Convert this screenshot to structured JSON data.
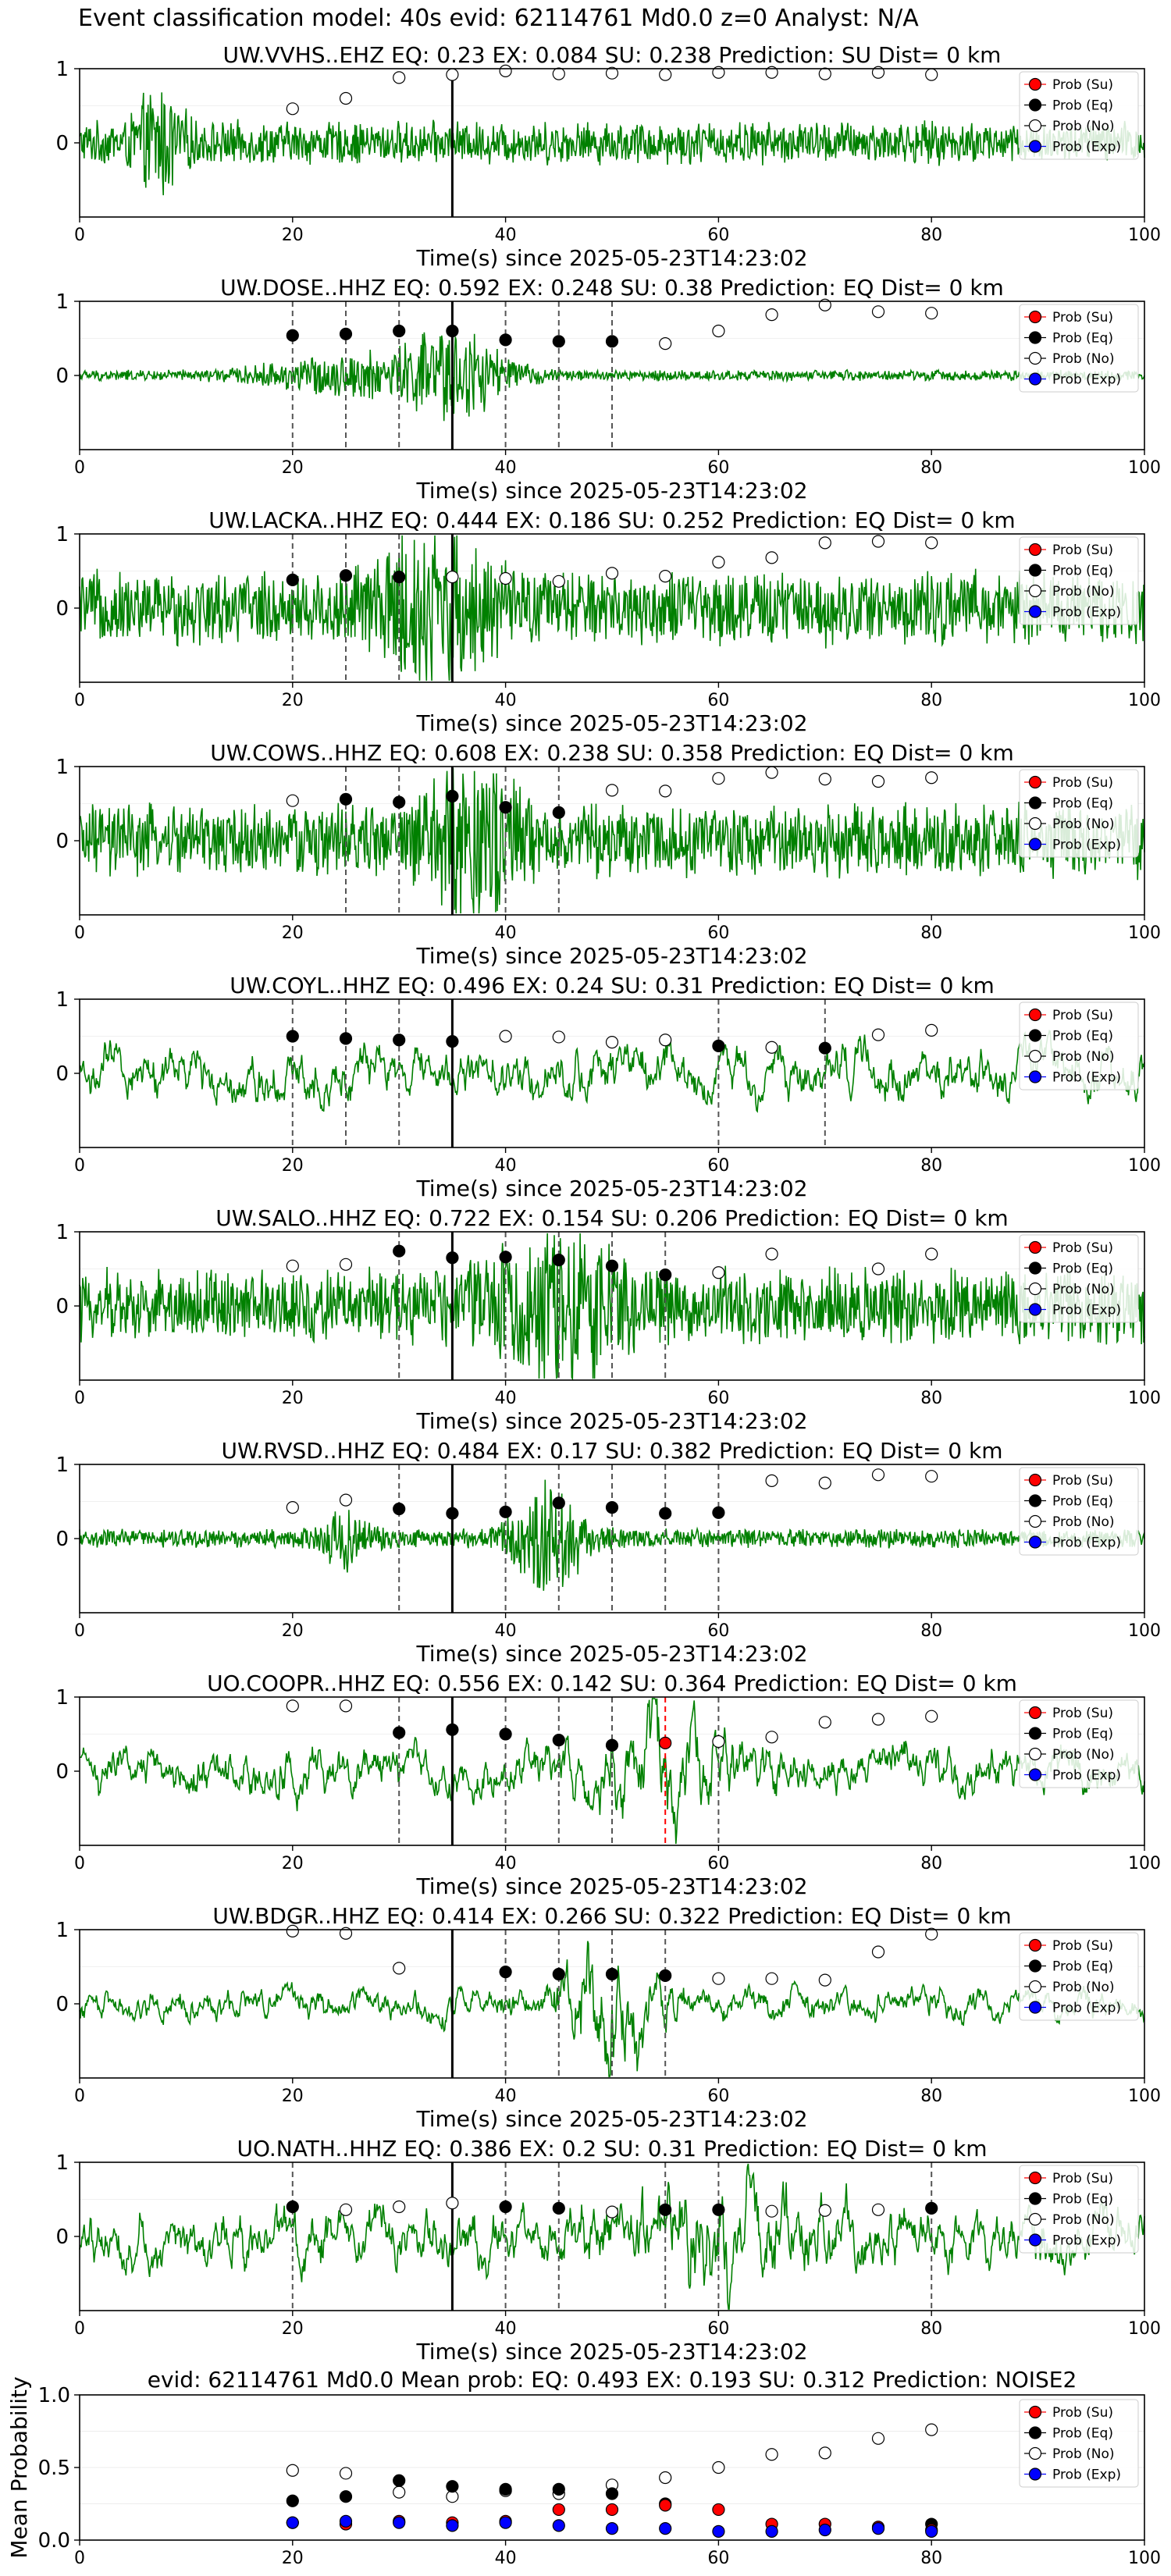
{
  "figure": {
    "suptitle": "Event classification model: 40s evid: 62114761 Md0.0 z=0 Analyst: N/A",
    "xlabel": "Time(s) since 2025-05-23T14:23:02",
    "xticks": [
      0,
      20,
      40,
      60,
      80,
      100
    ],
    "legend": [
      "Prob (Su)",
      "Prob (Eq)",
      "Prob (No)",
      "Prob (Exp)"
    ],
    "colors": {
      "waveform": "#008000",
      "su": "#ff0000",
      "eq": "#000000",
      "no": "#ffffff",
      "exp": "#0000ff",
      "pick": "#555555",
      "origin": "#000000"
    }
  },
  "chart_data": [
    {
      "type": "line",
      "title": "UW.VVHS..EHZ   EQ: 0.23  EX: 0.084  SU: 0.238   Prediction: SU    Dist= 0 km",
      "xlim": [
        0,
        100
      ],
      "ylim_ticks": [
        0,
        1
      ],
      "waveform": {
        "amp": 0.32,
        "style": "hf",
        "bursts": [
          [
            7.5,
            0.6,
            2.2
          ]
        ]
      },
      "origin_line": 35,
      "picks": [],
      "picks_red": [],
      "probs": {
        "x": [
          20,
          25,
          30,
          35,
          40,
          45,
          50,
          55,
          60,
          65,
          70,
          75,
          80
        ],
        "no": [
          0.46,
          0.6,
          0.88,
          0.92,
          0.97,
          0.93,
          0.94,
          0.92,
          0.95,
          0.95,
          0.93,
          0.95,
          0.92
        ]
      }
    },
    {
      "type": "line",
      "title": "UW.DOSE..HHZ   EQ: 0.592  EX: 0.248  SU: 0.38   Prediction: EQ    Dist= 0 km",
      "xlim": [
        0,
        100
      ],
      "ylim_ticks": [
        0,
        1
      ],
      "waveform": {
        "amp": 0.08,
        "style": "hf",
        "bursts": [
          [
            25,
            0.25,
            8
          ],
          [
            35,
            0.65,
            5
          ]
        ]
      },
      "origin_line": 35,
      "picks": [
        20,
        25,
        30,
        35,
        40,
        45,
        50
      ],
      "picks_red": [],
      "probs": {
        "x": [
          20,
          25,
          30,
          35,
          40,
          45,
          50,
          55,
          60,
          65,
          70,
          75,
          80
        ],
        "eq": [
          0.54,
          0.56,
          0.6,
          0.6,
          0.48,
          0.46,
          0.46,
          null,
          null,
          null,
          null,
          null,
          null
        ],
        "no": [
          null,
          null,
          null,
          null,
          null,
          null,
          null,
          0.43,
          0.6,
          0.82,
          0.95,
          0.86,
          0.84
        ]
      }
    },
    {
      "type": "line",
      "title": "UW.LACKA..HHZ   EQ: 0.444  EX: 0.186  SU: 0.252   Prediction: EQ    Dist= 0 km",
      "xlim": [
        0,
        100
      ],
      "ylim_ticks": [
        0,
        1
      ],
      "waveform": {
        "amp": 0.55,
        "style": "hf",
        "bursts": [
          [
            33,
            0.9,
            5
          ]
        ]
      },
      "origin_line": 35,
      "picks": [
        20,
        25,
        30,
        35
      ],
      "picks_red": [],
      "probs": {
        "x": [
          20,
          25,
          30,
          35,
          40,
          45,
          50,
          55,
          60,
          65,
          70,
          75,
          80
        ],
        "eq": [
          0.38,
          0.44,
          0.42,
          null,
          null,
          null,
          null,
          null,
          null,
          null,
          null,
          null,
          null
        ],
        "no": [
          null,
          null,
          null,
          0.42,
          0.4,
          0.36,
          0.47,
          0.43,
          0.62,
          0.68,
          0.88,
          0.9,
          0.88
        ]
      }
    },
    {
      "type": "line",
      "title": "UW.COWS..HHZ   EQ: 0.608  EX: 0.238  SU: 0.358   Prediction: EQ    Dist= 0 km",
      "xlim": [
        0,
        100
      ],
      "ylim_ticks": [
        0,
        1
      ],
      "waveform": {
        "amp": 0.55,
        "style": "hf",
        "bursts": [
          [
            37,
            0.9,
            4
          ]
        ]
      },
      "origin_line": 35,
      "picks": [
        25,
        30,
        35,
        40,
        45
      ],
      "picks_red": [],
      "probs": {
        "x": [
          20,
          25,
          30,
          35,
          40,
          45,
          50,
          55,
          60,
          65,
          70,
          75,
          80
        ],
        "eq": [
          null,
          0.56,
          0.52,
          0.6,
          0.45,
          0.38,
          null,
          null,
          null,
          null,
          null,
          null,
          null
        ],
        "no": [
          0.54,
          null,
          null,
          null,
          null,
          null,
          0.68,
          0.67,
          0.84,
          0.92,
          0.83,
          0.8,
          0.85
        ]
      }
    },
    {
      "type": "line",
      "title": "UW.COYL..HHZ   EQ: 0.496  EX: 0.24  SU: 0.31   Prediction: EQ    Dist= 0 km",
      "xlim": [
        0,
        100
      ],
      "ylim_ticks": [
        0,
        1
      ],
      "waveform": {
        "amp": 0.5,
        "style": "lf",
        "bursts": []
      },
      "origin_line": 35,
      "picks": [
        20,
        25,
        30,
        35,
        60,
        70
      ],
      "picks_red": [],
      "probs": {
        "x": [
          20,
          25,
          30,
          35,
          40,
          45,
          50,
          55,
          60,
          65,
          70,
          75,
          80
        ],
        "eq": [
          0.5,
          0.47,
          0.45,
          0.43,
          null,
          null,
          null,
          null,
          0.37,
          null,
          0.34,
          null,
          null
        ],
        "no": [
          null,
          null,
          null,
          null,
          0.5,
          0.49,
          0.42,
          0.45,
          null,
          0.35,
          null,
          0.52,
          0.58
        ]
      }
    },
    {
      "type": "line",
      "title": "UW.SALO..HHZ   EQ: 0.722  EX: 0.154  SU: 0.206   Prediction: EQ    Dist= 0 km",
      "xlim": [
        0,
        100
      ],
      "ylim_ticks": [
        0,
        1
      ],
      "waveform": {
        "amp": 0.55,
        "style": "hf",
        "bursts": [
          [
            45,
            0.8,
            6
          ]
        ]
      },
      "origin_line": 35,
      "picks": [
        30,
        35,
        40,
        45,
        50,
        55
      ],
      "picks_red": [],
      "probs": {
        "x": [
          20,
          25,
          30,
          35,
          40,
          45,
          50,
          55,
          60,
          65,
          70,
          75,
          80
        ],
        "eq": [
          null,
          null,
          0.74,
          0.65,
          0.66,
          0.62,
          0.54,
          0.42,
          null,
          null,
          null,
          null,
          null
        ],
        "no": [
          0.54,
          0.56,
          null,
          null,
          null,
          null,
          null,
          null,
          0.45,
          0.7,
          null,
          0.5,
          0.7
        ]
      }
    },
    {
      "type": "line",
      "title": "UW.RVSD..HHZ   EQ: 0.484  EX: 0.17  SU: 0.382   Prediction: EQ    Dist= 0 km",
      "xlim": [
        0,
        100
      ],
      "ylim_ticks": [
        0,
        1
      ],
      "waveform": {
        "amp": 0.14,
        "style": "hf",
        "bursts": [
          [
            25,
            0.4,
            2
          ],
          [
            44,
            0.9,
            3
          ]
        ]
      },
      "origin_line": 35,
      "picks": [
        30,
        35,
        40,
        45,
        50,
        55,
        60
      ],
      "picks_red": [],
      "probs": {
        "x": [
          20,
          25,
          30,
          35,
          40,
          45,
          50,
          55,
          60,
          65,
          70,
          75,
          80
        ],
        "eq": [
          null,
          null,
          0.4,
          0.34,
          0.36,
          0.48,
          0.42,
          0.34,
          0.35,
          null,
          null,
          null,
          null
        ],
        "no": [
          0.42,
          0.52,
          null,
          null,
          null,
          null,
          null,
          null,
          null,
          0.78,
          0.75,
          0.86,
          0.84
        ]
      }
    },
    {
      "type": "line",
      "title": "UO.COOPR..HHZ   EQ: 0.556  EX: 0.142  SU: 0.364   Prediction: EQ    Dist= 0 km",
      "xlim": [
        0,
        100
      ],
      "ylim_ticks": [
        0,
        1
      ],
      "waveform": {
        "amp": 0.45,
        "style": "lf",
        "bursts": [
          [
            55,
            0.7,
            6
          ]
        ]
      },
      "origin_line": 35,
      "picks": [
        30,
        35,
        40,
        45,
        50,
        60
      ],
      "picks_red": [
        55
      ],
      "probs": {
        "x": [
          20,
          25,
          30,
          35,
          40,
          45,
          50,
          55,
          60,
          65,
          70,
          75,
          80
        ],
        "su": [
          null,
          null,
          null,
          null,
          null,
          null,
          null,
          0.38,
          null,
          null,
          null,
          null,
          null
        ],
        "eq": [
          null,
          null,
          0.52,
          0.56,
          0.5,
          0.42,
          0.35,
          null,
          null,
          null,
          null,
          null,
          null
        ],
        "no": [
          0.88,
          0.88,
          null,
          null,
          null,
          null,
          null,
          null,
          0.4,
          0.46,
          0.66,
          0.7,
          0.74
        ]
      }
    },
    {
      "type": "line",
      "title": "UW.BDGR..HHZ   EQ: 0.414  EX: 0.266  SU: 0.322   Prediction: EQ    Dist= 0 km",
      "xlim": [
        0,
        100
      ],
      "ylim_ticks": [
        0,
        1
      ],
      "waveform": {
        "amp": 0.3,
        "style": "lf",
        "bursts": [
          [
            50,
            1.0,
            4
          ]
        ]
      },
      "origin_line": 35,
      "picks": [
        40,
        45,
        50,
        55
      ],
      "picks_red": [],
      "probs": {
        "x": [
          20,
          25,
          30,
          35,
          40,
          45,
          50,
          55,
          60,
          65,
          70,
          75,
          80
        ],
        "eq": [
          null,
          null,
          null,
          null,
          0.43,
          0.4,
          0.4,
          0.38,
          null,
          null,
          null,
          null,
          null
        ],
        "no": [
          0.98,
          0.95,
          0.48,
          null,
          null,
          null,
          null,
          null,
          0.34,
          0.34,
          0.32,
          0.7,
          0.94
        ]
      }
    },
    {
      "type": "line",
      "title": "UO.NATH..HHZ   EQ: 0.386  EX: 0.2  SU: 0.31   Prediction: EQ    Dist= 0 km",
      "xlim": [
        0,
        100
      ],
      "ylim_ticks": [
        0,
        1
      ],
      "waveform": {
        "amp": 0.55,
        "style": "lf",
        "bursts": [
          [
            60,
            0.7,
            8
          ]
        ]
      },
      "origin_line": 35,
      "picks": [
        20,
        40,
        45,
        55,
        60,
        80
      ],
      "picks_red": [],
      "probs": {
        "x": [
          20,
          25,
          30,
          35,
          40,
          45,
          50,
          55,
          60,
          65,
          70,
          75,
          80
        ],
        "eq": [
          0.4,
          null,
          null,
          null,
          0.4,
          0.38,
          null,
          0.36,
          0.36,
          null,
          null,
          null,
          0.38
        ],
        "no": [
          null,
          0.36,
          0.4,
          0.45,
          null,
          null,
          0.33,
          null,
          null,
          0.34,
          0.35,
          0.36,
          null
        ]
      }
    },
    {
      "type": "scatter",
      "title": "evid: 62114761  Md0.0   Mean prob:   EQ: 0.493  EX: 0.193  SU: 0.312   Prediction: NOISE2",
      "ylabel": "Mean Probability",
      "xlim": [
        0,
        100
      ],
      "ylim": [
        0,
        1
      ],
      "yticks": [
        "0.0",
        "0.5",
        "1.0"
      ],
      "probs": {
        "x": [
          20,
          25,
          30,
          35,
          40,
          45,
          50,
          55,
          60,
          65,
          70,
          75,
          80
        ],
        "su": [
          0.12,
          0.11,
          0.13,
          0.12,
          0.13,
          0.21,
          0.21,
          0.24,
          0.21,
          0.11,
          0.11,
          0.09,
          0.07
        ],
        "eq": [
          0.27,
          0.3,
          0.41,
          0.37,
          0.35,
          0.35,
          0.32,
          0.25,
          null,
          null,
          null,
          null,
          0.11
        ],
        "no": [
          0.48,
          0.46,
          0.33,
          0.3,
          0.34,
          0.32,
          0.38,
          0.43,
          0.5,
          0.59,
          0.6,
          0.7,
          0.76
        ],
        "exp": [
          0.12,
          0.13,
          0.12,
          0.1,
          0.12,
          0.1,
          0.08,
          0.08,
          0.06,
          0.06,
          0.07,
          0.08,
          0.06
        ]
      }
    }
  ]
}
